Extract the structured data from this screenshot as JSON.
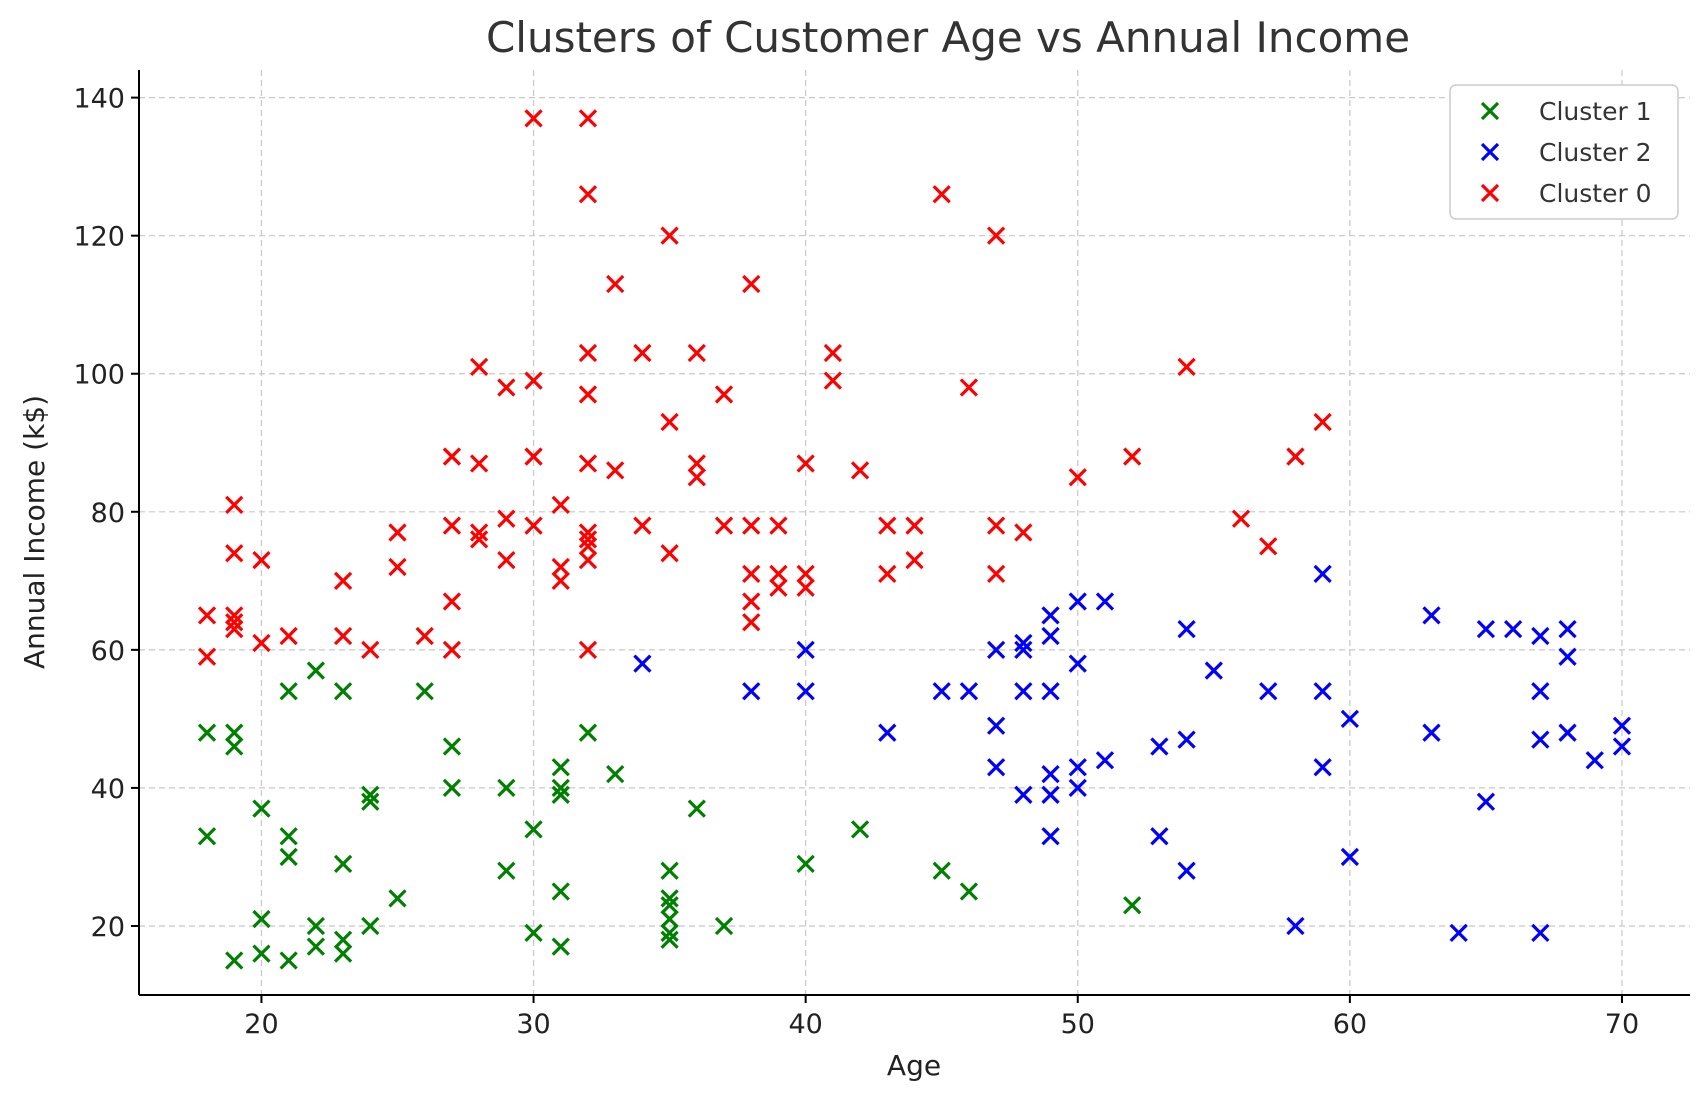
{
  "chart_data": {
    "type": "scatter",
    "title": "Clusters of Customer Age vs Annual Income",
    "xlabel": "Age",
    "ylabel": "Annual Income (k$)",
    "xlim": [
      15.5,
      72.5
    ],
    "ylim": [
      10,
      144
    ],
    "xticks": [
      20,
      30,
      40,
      50,
      60,
      70
    ],
    "yticks": [
      20,
      40,
      60,
      80,
      100,
      120,
      140
    ],
    "grid": true,
    "legend_position": "top-right",
    "marker": "x",
    "series": [
      {
        "name": "Cluster 1",
        "color": "#008000",
        "points": [
          [
            18,
            48
          ],
          [
            18,
            33
          ],
          [
            19,
            48
          ],
          [
            19,
            46
          ],
          [
            19,
            15
          ],
          [
            20,
            37
          ],
          [
            20,
            21
          ],
          [
            20,
            16
          ],
          [
            21,
            54
          ],
          [
            21,
            33
          ],
          [
            21,
            30
          ],
          [
            21,
            15
          ],
          [
            22,
            57
          ],
          [
            22,
            20
          ],
          [
            22,
            17
          ],
          [
            23,
            54
          ],
          [
            23,
            29
          ],
          [
            23,
            18
          ],
          [
            23,
            16
          ],
          [
            24,
            39
          ],
          [
            24,
            38
          ],
          [
            24,
            20
          ],
          [
            25,
            24
          ],
          [
            26,
            54
          ],
          [
            27,
            46
          ],
          [
            27,
            40
          ],
          [
            29,
            40
          ],
          [
            29,
            28
          ],
          [
            30,
            34
          ],
          [
            30,
            19
          ],
          [
            31,
            43
          ],
          [
            31,
            40
          ],
          [
            31,
            39
          ],
          [
            31,
            25
          ],
          [
            31,
            17
          ],
          [
            32,
            48
          ],
          [
            33,
            42
          ],
          [
            35,
            28
          ],
          [
            35,
            24
          ],
          [
            35,
            23
          ],
          [
            35,
            21
          ],
          [
            35,
            19
          ],
          [
            35,
            18
          ],
          [
            36,
            37
          ],
          [
            37,
            20
          ],
          [
            40,
            29
          ],
          [
            42,
            34
          ],
          [
            45,
            28
          ],
          [
            46,
            25
          ],
          [
            52,
            23
          ]
        ]
      },
      {
        "name": "Cluster 2",
        "color": "#0000ff",
        "points": [
          [
            34,
            58
          ],
          [
            38,
            54
          ],
          [
            40,
            60
          ],
          [
            40,
            54
          ],
          [
            43,
            48
          ],
          [
            45,
            54
          ],
          [
            46,
            54
          ],
          [
            47,
            60
          ],
          [
            47,
            49
          ],
          [
            47,
            43
          ],
          [
            48,
            61
          ],
          [
            48,
            60
          ],
          [
            48,
            54
          ],
          [
            48,
            39
          ],
          [
            49,
            65
          ],
          [
            49,
            62
          ],
          [
            49,
            54
          ],
          [
            49,
            42
          ],
          [
            49,
            39
          ],
          [
            49,
            33
          ],
          [
            50,
            67
          ],
          [
            50,
            58
          ],
          [
            50,
            43
          ],
          [
            50,
            40
          ],
          [
            51,
            67
          ],
          [
            51,
            44
          ],
          [
            53,
            46
          ],
          [
            53,
            33
          ],
          [
            54,
            63
          ],
          [
            54,
            47
          ],
          [
            54,
            28
          ],
          [
            55,
            57
          ],
          [
            57,
            54
          ],
          [
            58,
            20
          ],
          [
            59,
            71
          ],
          [
            59,
            54
          ],
          [
            59,
            43
          ],
          [
            60,
            50
          ],
          [
            60,
            30
          ],
          [
            63,
            65
          ],
          [
            63,
            48
          ],
          [
            64,
            19
          ],
          [
            65,
            63
          ],
          [
            65,
            38
          ],
          [
            66,
            63
          ],
          [
            67,
            62
          ],
          [
            67,
            54
          ],
          [
            67,
            47
          ],
          [
            67,
            19
          ],
          [
            68,
            63
          ],
          [
            68,
            59
          ],
          [
            68,
            48
          ],
          [
            69,
            44
          ],
          [
            70,
            49
          ],
          [
            70,
            46
          ]
        ]
      },
      {
        "name": "Cluster 0",
        "color": "#ff0000",
        "points": [
          [
            18,
            65
          ],
          [
            18,
            59
          ],
          [
            19,
            81
          ],
          [
            19,
            74
          ],
          [
            19,
            65
          ],
          [
            19,
            64
          ],
          [
            19,
            63
          ],
          [
            20,
            73
          ],
          [
            20,
            61
          ],
          [
            21,
            62
          ],
          [
            23,
            70
          ],
          [
            23,
            62
          ],
          [
            24,
            60
          ],
          [
            25,
            77
          ],
          [
            25,
            72
          ],
          [
            26,
            62
          ],
          [
            27,
            88
          ],
          [
            27,
            78
          ],
          [
            27,
            67
          ],
          [
            27,
            60
          ],
          [
            28,
            101
          ],
          [
            28,
            87
          ],
          [
            28,
            77
          ],
          [
            28,
            76
          ],
          [
            29,
            98
          ],
          [
            29,
            79
          ],
          [
            29,
            73
          ],
          [
            30,
            137
          ],
          [
            30,
            99
          ],
          [
            30,
            88
          ],
          [
            30,
            78
          ],
          [
            31,
            81
          ],
          [
            31,
            72
          ],
          [
            31,
            70
          ],
          [
            32,
            137
          ],
          [
            32,
            126
          ],
          [
            32,
            103
          ],
          [
            32,
            97
          ],
          [
            32,
            87
          ],
          [
            32,
            77
          ],
          [
            32,
            76
          ],
          [
            32,
            75
          ],
          [
            32,
            73
          ],
          [
            32,
            60
          ],
          [
            33,
            113
          ],
          [
            33,
            86
          ],
          [
            34,
            103
          ],
          [
            34,
            78
          ],
          [
            35,
            120
          ],
          [
            35,
            93
          ],
          [
            35,
            74
          ],
          [
            36,
            103
          ],
          [
            36,
            87
          ],
          [
            36,
            85
          ],
          [
            37,
            97
          ],
          [
            37,
            78
          ],
          [
            38,
            113
          ],
          [
            38,
            78
          ],
          [
            38,
            71
          ],
          [
            38,
            67
          ],
          [
            38,
            64
          ],
          [
            39,
            78
          ],
          [
            39,
            71
          ],
          [
            39,
            69
          ],
          [
            40,
            87
          ],
          [
            40,
            71
          ],
          [
            40,
            69
          ],
          [
            41,
            103
          ],
          [
            41,
            99
          ],
          [
            42,
            86
          ],
          [
            43,
            78
          ],
          [
            43,
            71
          ],
          [
            44,
            78
          ],
          [
            44,
            73
          ],
          [
            45,
            126
          ],
          [
            46,
            98
          ],
          [
            47,
            120
          ],
          [
            47,
            78
          ],
          [
            47,
            71
          ],
          [
            48,
            77
          ],
          [
            50,
            85
          ],
          [
            52,
            88
          ],
          [
            54,
            101
          ],
          [
            56,
            79
          ],
          [
            57,
            75
          ],
          [
            58,
            88
          ],
          [
            59,
            93
          ]
        ]
      }
    ]
  }
}
